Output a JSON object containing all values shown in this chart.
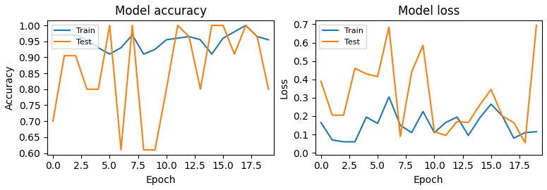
{
  "acc_train": [
    0.97,
    0.97,
    0.97,
    0.955,
    0.93,
    0.91,
    0.93,
    0.97,
    0.91,
    0.925,
    0.955,
    0.96,
    0.965,
    0.955,
    0.91,
    0.96,
    0.98,
    1.0,
    0.965,
    0.955
  ],
  "acc_test": [
    0.7,
    0.905,
    0.905,
    0.8,
    0.8,
    1.0,
    0.61,
    1.0,
    0.61,
    0.61,
    0.8,
    1.0,
    0.965,
    0.8,
    1.0,
    1.0,
    0.91,
    1.0,
    0.965,
    0.8
  ],
  "loss_train": [
    0.165,
    0.07,
    0.06,
    0.06,
    0.195,
    0.16,
    0.305,
    0.15,
    0.11,
    0.225,
    0.11,
    0.165,
    0.195,
    0.095,
    0.19,
    0.265,
    0.2,
    0.08,
    0.11,
    0.115
  ],
  "loss_test": [
    0.39,
    0.205,
    0.205,
    0.46,
    0.43,
    0.415,
    0.685,
    0.09,
    0.44,
    0.585,
    0.115,
    0.095,
    0.17,
    0.165,
    0.26,
    0.345,
    0.2,
    0.165,
    0.055,
    0.695
  ],
  "acc_title": "Model accuracy",
  "loss_title": "Model loss",
  "xlabel": "Epoch",
  "acc_ylabel": "Accuracy",
  "loss_ylabel": "Loss",
  "train_label": "Train",
  "test_label": "Test",
  "train_color": "#1f77b4",
  "test_color": "#ff7f0e",
  "acc_ylim": [
    0.595,
    1.015
  ],
  "loss_ylim": [
    -0.01,
    0.72
  ],
  "acc_yticks": [
    0.6,
    0.65,
    0.7,
    0.75,
    0.8,
    0.85,
    0.9,
    0.95,
    1.0
  ],
  "loss_yticks": [
    0.0,
    0.1,
    0.2,
    0.3,
    0.4,
    0.5,
    0.6,
    0.7
  ],
  "xticks": [
    0.0,
    2.5,
    5.0,
    7.5,
    10.0,
    12.5,
    15.0,
    17.5
  ],
  "xlim": [
    -0.5,
    19.5
  ]
}
